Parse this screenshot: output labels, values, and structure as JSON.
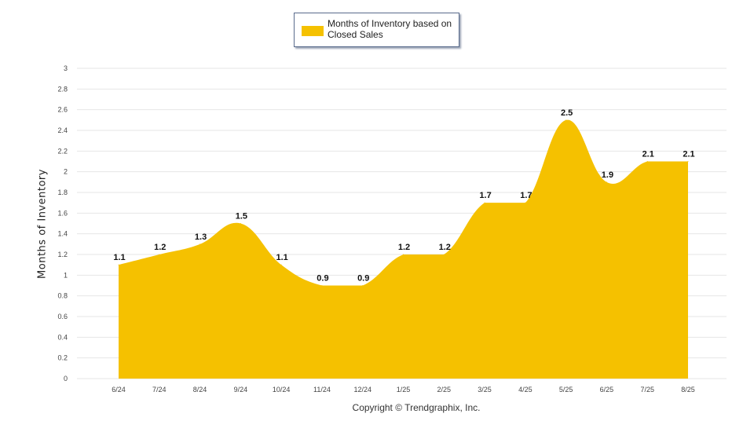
{
  "chart_data": {
    "type": "area",
    "categories": [
      "6/24",
      "7/24",
      "8/24",
      "9/24",
      "10/24",
      "11/24",
      "12/24",
      "1/25",
      "2/25",
      "3/25",
      "4/25",
      "5/25",
      "6/25",
      "7/25",
      "8/25"
    ],
    "series": [
      {
        "name": "Months of Inventory based on Closed Sales",
        "values": [
          1.1,
          1.2,
          1.3,
          1.5,
          1.1,
          0.9,
          0.9,
          1.2,
          1.2,
          1.7,
          1.7,
          2.5,
          1.9,
          2.1,
          2.1
        ],
        "color": "#f5c100"
      }
    ],
    "data_labels": [
      "1.1",
      "1.2",
      "1.3",
      "1.5",
      "1.1",
      "0.9",
      "0.9",
      "1.2",
      "1.2",
      "1.7",
      "1.7",
      "2.5",
      "1.9",
      "2.1",
      "2.1"
    ],
    "y_ticks": [
      "0",
      "0.2",
      "0.4",
      "0.6",
      "0.8",
      "1",
      "1.2",
      "1.4",
      "1.6",
      "1.8",
      "2",
      "2.2",
      "2.4",
      "2.6",
      "2.8",
      "3"
    ],
    "ylim": [
      0,
      3
    ],
    "ylabel": "Months of Inventory",
    "xlabel": "",
    "grid": true,
    "legend": "top-center"
  },
  "legend_label": "Months of Inventory based on Closed Sales",
  "copyright": "Copyright © Trendgraphix, Inc.",
  "colors": {
    "fill": "#f5c100",
    "grid": "#e6e6e6",
    "axis_text": "#444444"
  }
}
